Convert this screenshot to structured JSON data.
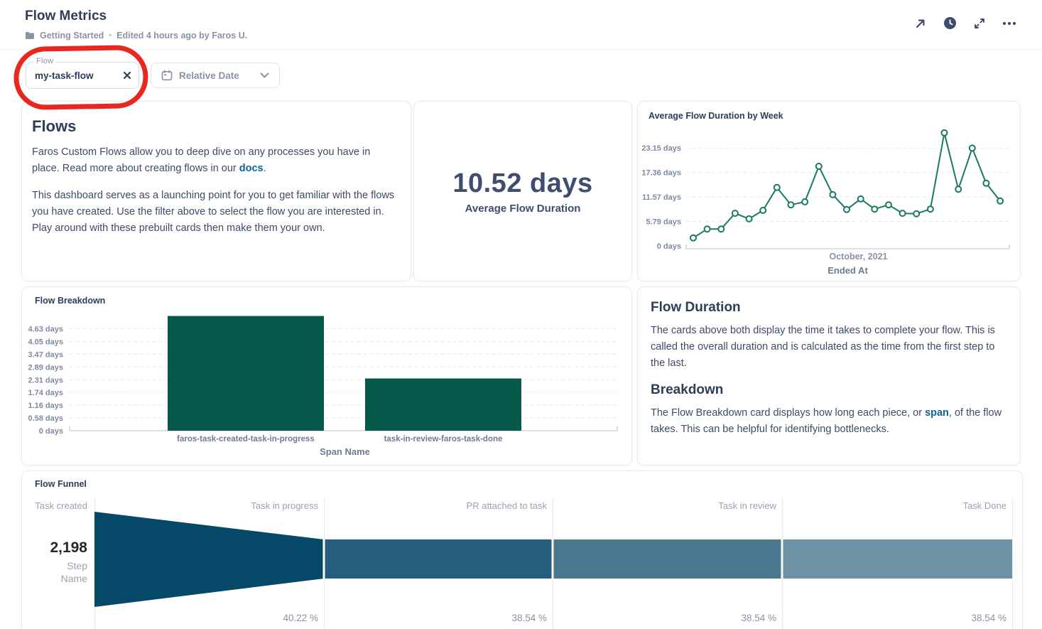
{
  "header": {
    "title": "Flow Metrics",
    "breadcrumb": "Getting Started",
    "dot": "•",
    "edited": "Edited 4 hours ago by Faros U.",
    "icons": [
      "open-in-new",
      "history",
      "fullscreen",
      "more"
    ]
  },
  "filters": {
    "flow_label": "Flow",
    "flow_value": "my-task-flow",
    "relative_date_label": "Relative Date"
  },
  "annotation": {
    "shape": "hand-drawn-red-circle-around-flow-filter",
    "color": "#e8281f"
  },
  "flows_card": {
    "heading": "Flows",
    "p1_before": "Faros Custom Flows allow you to deep dive on any processes you have in place. Read more about creating flows in our ",
    "p1_link": "docs",
    "p1_after": ".",
    "p2": "This dashboard serves as a launching point for you to get familiar with the flows you have created. Use the filter above to select the flow you are interested in. Play around with these prebuilt cards then make them your own."
  },
  "avg_card": {
    "value": "10.52 days",
    "label": "Average Flow Duration"
  },
  "duration_card": {
    "heading1": "Flow Duration",
    "p1": "The cards above both display the time it takes to complete your flow. This is called the overall duration and is calculated as the time from the first step to the last.",
    "heading2": "Breakdown",
    "p2_before": "The Flow Breakdown card displays how long each piece, or ",
    "p2_link": "span",
    "p2_after": ", of the flow takes. This can be helpful for identifying bottlenecks."
  },
  "chart_data": [
    {
      "type": "line",
      "title": "Average Flow Duration by Week",
      "xlabel": "Ended At",
      "x_group_label": "October, 2021",
      "unit": "days",
      "yticks": [
        "0 days",
        "5.79 days",
        "11.57 days",
        "17.36 days",
        "23.15 days"
      ],
      "ytick_values": [
        0,
        5.79,
        11.57,
        17.36,
        23.15
      ],
      "ylim": [
        0,
        27.5
      ],
      "values": [
        1.9,
        4.0,
        4.0,
        7.7,
        6.4,
        8.4,
        13.8,
        9.7,
        10.4,
        18.8,
        12.1,
        8.6,
        11.1,
        8.7,
        9.7,
        7.7,
        7.6,
        8.7,
        26.7,
        13.4,
        23.1,
        14.8,
        10.6
      ],
      "line_color": "#187a64",
      "grid": "dashed-horizontal",
      "legend": "none"
    },
    {
      "type": "bar",
      "title": "Flow Breakdown",
      "xlabel": "Span Name",
      "unit": "days",
      "categories": [
        "faros-task-created-task-in-progress",
        "task-in-review-faros-task-done"
      ],
      "values": [
        5.2,
        2.37
      ],
      "yticks": [
        "0 days",
        "0.58 days",
        "1.16 days",
        "1.74 days",
        "2.31 days",
        "2.89 days",
        "3.47 days",
        "4.05 days",
        "4.63 days"
      ],
      "ytick_values": [
        0,
        0.58,
        1.16,
        1.74,
        2.31,
        2.89,
        3.47,
        4.05,
        4.63
      ],
      "ylim": [
        0,
        5.3
      ],
      "bar_color": "#04594a",
      "grid": "dashed-horizontal",
      "legend": "none"
    },
    {
      "type": "funnel",
      "title": "Flow Funnel",
      "stages": [
        "Task created",
        "Task in progress",
        "PR attached to task",
        "Task in review",
        "Task Done"
      ],
      "first_step_value": "2,198",
      "axis_label": "Step Name",
      "percentages": [
        "40.22 %",
        "38.54 %",
        "38.54 %",
        "38.54 %"
      ],
      "colors": [
        "#064867",
        "#265d7c",
        "#49788f",
        "#6b93a5"
      ]
    }
  ],
  "colors": {
    "title_navy": "#2e3d59",
    "muted_gray": "#8a92a5",
    "link_blue": "#0f6399",
    "line_green": "#187a64",
    "bar_green": "#04594a",
    "annotation_red": "#e8281f"
  }
}
